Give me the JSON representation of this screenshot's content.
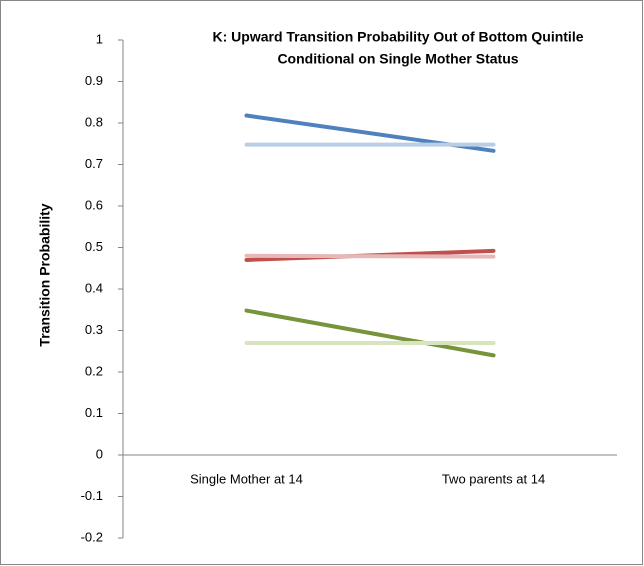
{
  "chart_data": {
    "type": "line",
    "title": [
      "K: Upward Transition Probability Out of Bottom Quintile",
      "Conditional on Single Mother Status"
    ],
    "y_label": "Transition Probability",
    "categories": [
      "Single Mother at 14",
      "Two parents at 14"
    ],
    "series": [
      {
        "color": "#4f81bd",
        "values": [
          0.818,
          0.733
        ]
      },
      {
        "color": "#b9cde5",
        "values": [
          0.748,
          0.748
        ]
      },
      {
        "color": "#c0504d",
        "values": [
          0.47,
          0.492
        ]
      },
      {
        "color": "#e6b9b8",
        "values": [
          0.48,
          0.478
        ]
      },
      {
        "color": "#77933c",
        "values": [
          0.348,
          0.24
        ]
      },
      {
        "color": "#d7e4bd",
        "values": [
          0.27,
          0.27
        ]
      }
    ],
    "ylim": [
      -0.2,
      1
    ],
    "yticks": [
      -0.2,
      -0.1,
      0,
      0.1,
      0.2,
      0.3,
      0.4,
      0.5,
      0.6,
      0.7,
      0.8,
      0.9,
      1
    ]
  }
}
